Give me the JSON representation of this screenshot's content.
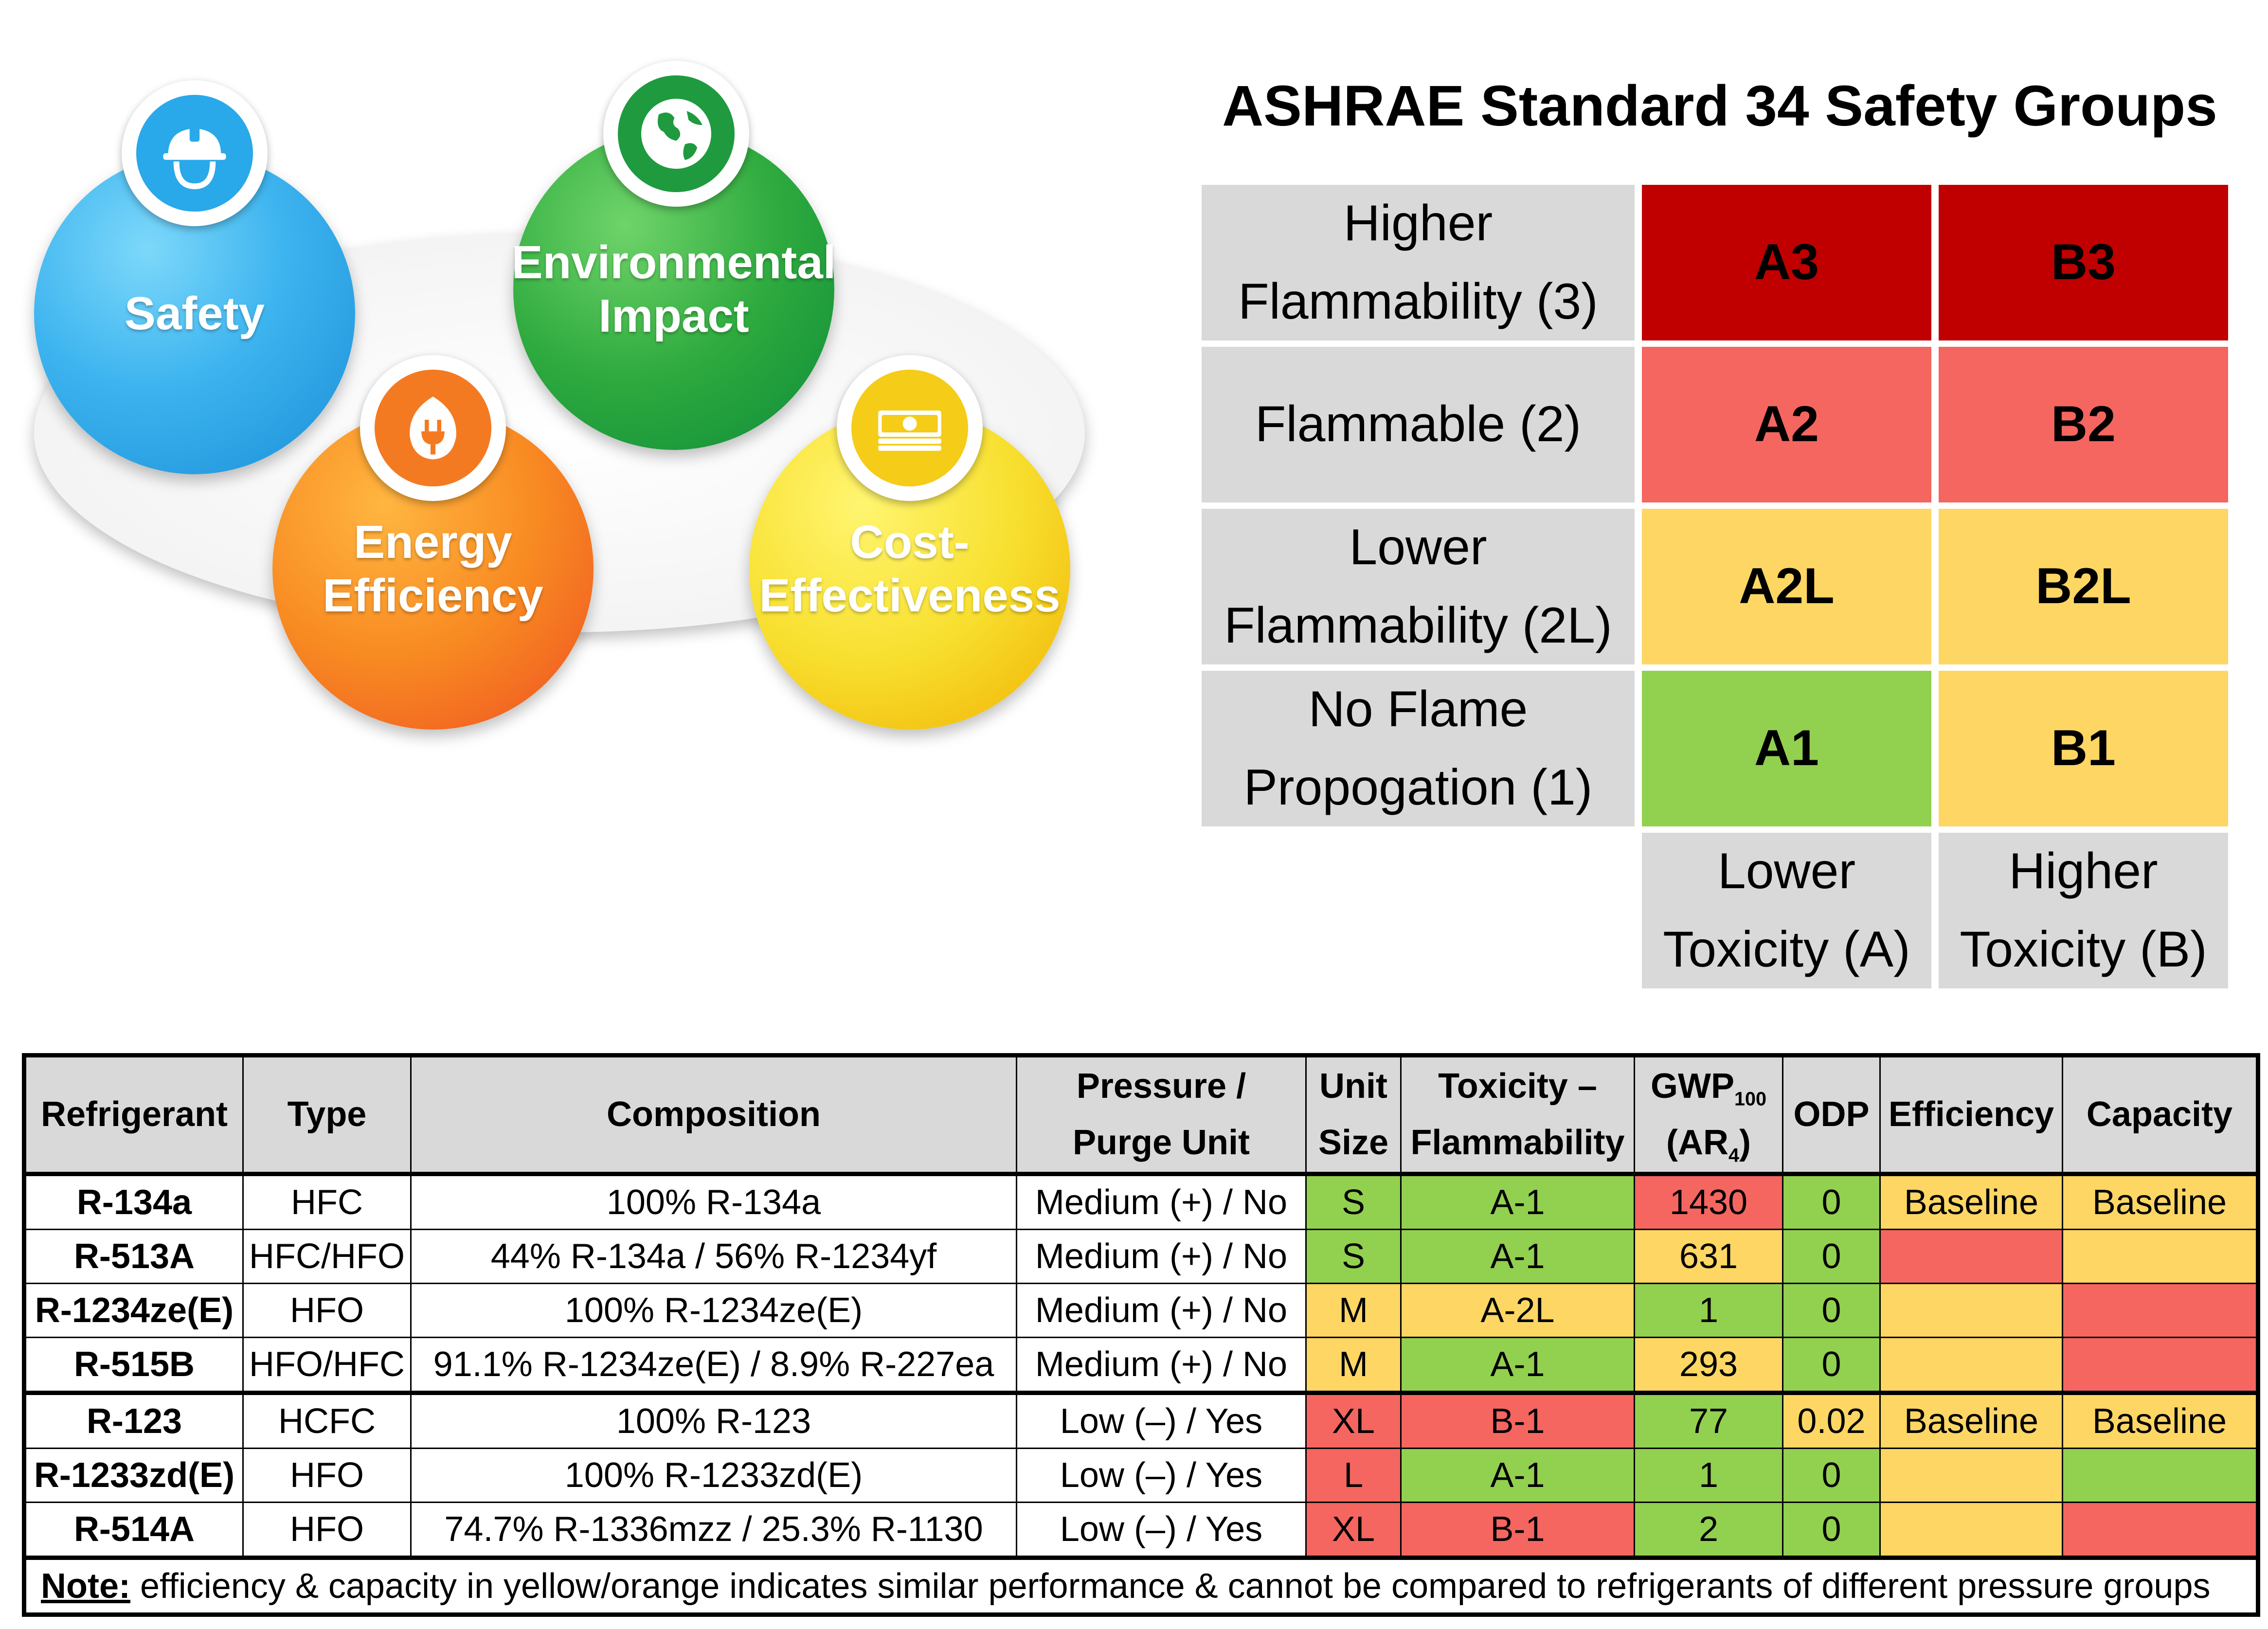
{
  "diagram": {
    "circles": [
      {
        "key": "safety",
        "lines": [
          "Safety"
        ],
        "icon": "hard-hat-icon",
        "color_light": "#5ac8f5",
        "color_dark": "#1a8fd8"
      },
      {
        "key": "environmental",
        "lines": [
          "Environmental",
          "Impact"
        ],
        "icon": "globe-icon",
        "color_light": "#4cc04c",
        "color_dark": "#0e8c3a"
      },
      {
        "key": "energy",
        "lines": [
          "Energy",
          "Efficiency"
        ],
        "icon": "leaf-plug-icon",
        "color_light": "#ffa020",
        "color_dark": "#f05020"
      },
      {
        "key": "cost",
        "lines": [
          "Cost-",
          "Effectiveness"
        ],
        "icon": "money-stack-icon",
        "color_light": "#ffef30",
        "color_dark": "#f0b000"
      }
    ]
  },
  "safety_groups": {
    "title": "ASHRAE Standard 34 Safety Groups",
    "rows": [
      {
        "label_lines": [
          "Higher",
          "Flammability (3)"
        ],
        "a": "A3",
        "b": "B3",
        "a_color": "#c00000",
        "b_color": "#c00000"
      },
      {
        "label_lines": [
          "Flammable (2)"
        ],
        "a": "A2",
        "b": "B2",
        "a_color": "#f4665f",
        "b_color": "#f4665f"
      },
      {
        "label_lines": [
          "Lower",
          "Flammability (2L)"
        ],
        "a": "A2L",
        "b": "B2L",
        "a_color": "#fdd664",
        "b_color": "#fdd664"
      },
      {
        "label_lines": [
          "No Flame",
          "Propogation (1)"
        ],
        "a": "A1",
        "b": "B1",
        "a_color": "#92d050",
        "b_color": "#fdd664"
      }
    ],
    "columns": [
      {
        "lines": [
          "Lower",
          "Toxicity (A)"
        ]
      },
      {
        "lines": [
          "Higher",
          "Toxicity (B)"
        ]
      }
    ],
    "label_bg": "#d9d9d9"
  },
  "refrigerant_table": {
    "headers": {
      "refrigerant": "Refrigerant",
      "type": "Type",
      "composition": "Composition",
      "pressure": [
        "Pressure /",
        "Purge Unit"
      ],
      "unit_size": [
        "Unit",
        "Size"
      ],
      "tox_flam": [
        "Toxicity –",
        "Flammability"
      ],
      "gwp": {
        "main": "GWP",
        "sub": "100",
        "line2_pre": "(AR",
        "line2_sub": "4",
        "line2_post": ")"
      },
      "odp": "ODP",
      "efficiency": "Efficiency",
      "capacity": "Capacity"
    },
    "colors": {
      "green": "#92d050",
      "yellow": "#fdd664",
      "red": "#f4665f",
      "none": "#ffffff"
    },
    "rows": [
      {
        "name": "R-134a",
        "type": "HFC",
        "composition": "100% R-134a",
        "pressure": "Medium (+) / No",
        "size": "S",
        "size_c": "green",
        "tox": "A-1",
        "tox_c": "green",
        "gwp": "1430",
        "gwp_c": "red",
        "odp": "0",
        "odp_c": "green",
        "eff": "Baseline",
        "eff_c": "yellow",
        "cap": "Baseline",
        "cap_c": "yellow"
      },
      {
        "name": "R-513A",
        "type": "HFC/HFO",
        "composition": "44% R-134a / 56% R-1234yf",
        "pressure": "Medium (+) / No",
        "size": "S",
        "size_c": "green",
        "tox": "A-1",
        "tox_c": "green",
        "gwp": "631",
        "gwp_c": "yellow",
        "odp": "0",
        "odp_c": "green",
        "eff": "",
        "eff_c": "red",
        "cap": "",
        "cap_c": "yellow"
      },
      {
        "name": "R-1234ze(E)",
        "type": "HFO",
        "composition": "100% R-1234ze(E)",
        "pressure": "Medium (+) / No",
        "size": "M",
        "size_c": "yellow",
        "tox": "A-2L",
        "tox_c": "yellow",
        "gwp": "1",
        "gwp_c": "green",
        "odp": "0",
        "odp_c": "green",
        "eff": "",
        "eff_c": "yellow",
        "cap": "",
        "cap_c": "red"
      },
      {
        "name": "R-515B",
        "type": "HFO/HFC",
        "composition": "91.1% R-1234ze(E) / 8.9% R-227ea",
        "pressure": "Medium (+) / No",
        "size": "M",
        "size_c": "yellow",
        "tox": "A-1",
        "tox_c": "green",
        "gwp": "293",
        "gwp_c": "yellow",
        "odp": "0",
        "odp_c": "green",
        "eff": "",
        "eff_c": "yellow",
        "cap": "",
        "cap_c": "red"
      },
      {
        "name": "R-123",
        "type": "HCFC",
        "composition": "100% R-123",
        "pressure": "Low (–) / Yes",
        "size": "XL",
        "size_c": "red",
        "tox": "B-1",
        "tox_c": "red",
        "gwp": "77",
        "gwp_c": "green",
        "odp": "0.02",
        "odp_c": "yellow",
        "eff": "Baseline",
        "eff_c": "yellow",
        "cap": "Baseline",
        "cap_c": "yellow",
        "sep": true
      },
      {
        "name": "R-1233zd(E)",
        "type": "HFO",
        "composition": "100% R-1233zd(E)",
        "pressure": "Low (–) / Yes",
        "size": "L",
        "size_c": "red",
        "tox": "A-1",
        "tox_c": "green",
        "gwp": "1",
        "gwp_c": "green",
        "odp": "0",
        "odp_c": "green",
        "eff": "",
        "eff_c": "yellow",
        "cap": "",
        "cap_c": "green"
      },
      {
        "name": "R-514A",
        "type": "HFO",
        "composition": "74.7% R-1336mzz / 25.3% R-1130",
        "pressure": "Low (–) / Yes",
        "size": "XL",
        "size_c": "red",
        "tox": "B-1",
        "tox_c": "red",
        "gwp": "2",
        "gwp_c": "green",
        "odp": "0",
        "odp_c": "green",
        "eff": "",
        "eff_c": "yellow",
        "cap": "",
        "cap_c": "red"
      }
    ],
    "note": {
      "label": "Note:",
      "text": " efficiency & capacity in yellow/orange indicates similar performance & cannot be compared to refrigerants of different pressure groups"
    }
  }
}
